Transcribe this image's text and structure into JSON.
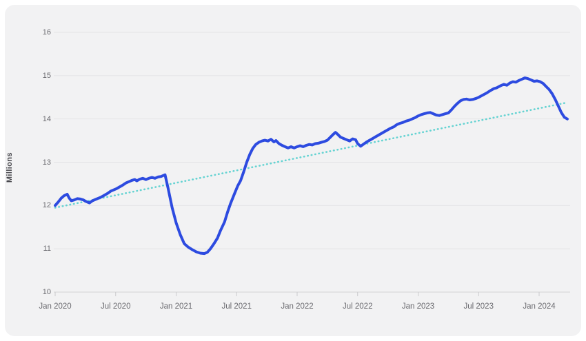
{
  "page": {
    "background": "#ffffff",
    "card_background": "#f2f2f3",
    "gridline_color": "#e4e4e6",
    "baseline_color": "#d8d8da",
    "tickmark_color": "#cbcbcd",
    "axis_text_color": "#6b6b70"
  },
  "chart_data": {
    "type": "line",
    "title": "",
    "xlabel": "",
    "ylabel": "Millions",
    "grid": "horizontal",
    "legend": "none",
    "ylim": [
      10,
      16
    ],
    "xlim_months_from_jan2020": [
      -0.15,
      51.1
    ],
    "y_ticks": [
      {
        "label": "10",
        "v": 10
      },
      {
        "label": "11",
        "v": 11
      },
      {
        "label": "12",
        "v": 12
      },
      {
        "label": "13",
        "v": 13
      },
      {
        "label": "14",
        "v": 14
      },
      {
        "label": "15",
        "v": 15
      },
      {
        "label": "16",
        "v": 16
      }
    ],
    "x_ticks": [
      {
        "label": "Jan 2020",
        "m": 0
      },
      {
        "label": "Jul 2020",
        "m": 6
      },
      {
        "label": "Jan 2021",
        "m": 12
      },
      {
        "label": "Jul 2021",
        "m": 18
      },
      {
        "label": "Jan 2022",
        "m": 24
      },
      {
        "label": "Jul 2022",
        "m": 30
      },
      {
        "label": "Jan 2023",
        "m": 36
      },
      {
        "label": "Jul 2023",
        "m": 42
      },
      {
        "label": "Jan 2024",
        "m": 48
      }
    ],
    "series": [
      {
        "name": "observed",
        "color": "#2d4be0",
        "style": "solid",
        "points": [
          [
            0,
            12.0
          ],
          [
            0.3,
            12.08
          ],
          [
            0.6,
            12.17
          ],
          [
            0.9,
            12.23
          ],
          [
            1.2,
            12.26
          ],
          [
            1.4,
            12.17
          ],
          [
            1.6,
            12.11
          ],
          [
            1.9,
            12.13
          ],
          [
            2.2,
            12.16
          ],
          [
            2.5,
            12.15
          ],
          [
            2.8,
            12.13
          ],
          [
            3.1,
            12.09
          ],
          [
            3.4,
            12.06
          ],
          [
            3.7,
            12.11
          ],
          [
            4.0,
            12.14
          ],
          [
            4.3,
            12.17
          ],
          [
            4.6,
            12.2
          ],
          [
            4.9,
            12.24
          ],
          [
            5.2,
            12.28
          ],
          [
            5.5,
            12.33
          ],
          [
            5.8,
            12.36
          ],
          [
            6.1,
            12.39
          ],
          [
            6.4,
            12.43
          ],
          [
            6.7,
            12.47
          ],
          [
            7.0,
            12.52
          ],
          [
            7.3,
            12.55
          ],
          [
            7.6,
            12.58
          ],
          [
            7.9,
            12.6
          ],
          [
            8.1,
            12.57
          ],
          [
            8.4,
            12.61
          ],
          [
            8.7,
            12.63
          ],
          [
            9.0,
            12.6
          ],
          [
            9.3,
            12.63
          ],
          [
            9.6,
            12.65
          ],
          [
            9.9,
            12.63
          ],
          [
            10.2,
            12.66
          ],
          [
            10.5,
            12.67
          ],
          [
            10.9,
            12.71
          ],
          [
            11.2,
            12.4
          ],
          [
            11.6,
            11.95
          ],
          [
            12.0,
            11.6
          ],
          [
            12.4,
            11.33
          ],
          [
            12.8,
            11.12
          ],
          [
            13.2,
            11.04
          ],
          [
            13.6,
            10.98
          ],
          [
            14.0,
            10.93
          ],
          [
            14.4,
            10.9
          ],
          [
            14.8,
            10.89
          ],
          [
            15.1,
            10.92
          ],
          [
            15.4,
            11.0
          ],
          [
            15.7,
            11.1
          ],
          [
            16.1,
            11.25
          ],
          [
            16.4,
            11.42
          ],
          [
            16.8,
            11.62
          ],
          [
            17.1,
            11.85
          ],
          [
            17.4,
            12.05
          ],
          [
            17.8,
            12.28
          ],
          [
            18.1,
            12.45
          ],
          [
            18.4,
            12.58
          ],
          [
            18.7,
            12.78
          ],
          [
            19.0,
            13.0
          ],
          [
            19.3,
            13.18
          ],
          [
            19.6,
            13.32
          ],
          [
            19.9,
            13.41
          ],
          [
            20.2,
            13.46
          ],
          [
            20.5,
            13.49
          ],
          [
            20.8,
            13.51
          ],
          [
            21.1,
            13.49
          ],
          [
            21.4,
            13.53
          ],
          [
            21.7,
            13.47
          ],
          [
            21.9,
            13.5
          ],
          [
            22.2,
            13.43
          ],
          [
            22.5,
            13.39
          ],
          [
            22.8,
            13.36
          ],
          [
            23.1,
            13.33
          ],
          [
            23.4,
            13.36
          ],
          [
            23.7,
            13.33
          ],
          [
            24.0,
            13.36
          ],
          [
            24.3,
            13.38
          ],
          [
            24.6,
            13.36
          ],
          [
            24.9,
            13.39
          ],
          [
            25.2,
            13.41
          ],
          [
            25.5,
            13.4
          ],
          [
            25.8,
            13.43
          ],
          [
            26.1,
            13.44
          ],
          [
            26.4,
            13.46
          ],
          [
            26.7,
            13.48
          ],
          [
            27.0,
            13.51
          ],
          [
            27.3,
            13.58
          ],
          [
            27.6,
            13.65
          ],
          [
            27.8,
            13.69
          ],
          [
            28.0,
            13.65
          ],
          [
            28.3,
            13.58
          ],
          [
            28.6,
            13.55
          ],
          [
            28.9,
            13.52
          ],
          [
            29.2,
            13.49
          ],
          [
            29.5,
            13.54
          ],
          [
            29.8,
            13.52
          ],
          [
            30.0,
            13.43
          ],
          [
            30.3,
            13.37
          ],
          [
            30.6,
            13.42
          ],
          [
            30.9,
            13.47
          ],
          [
            31.2,
            13.51
          ],
          [
            31.5,
            13.55
          ],
          [
            31.8,
            13.59
          ],
          [
            32.1,
            13.63
          ],
          [
            32.4,
            13.67
          ],
          [
            32.7,
            13.71
          ],
          [
            33.0,
            13.75
          ],
          [
            33.3,
            13.79
          ],
          [
            33.6,
            13.82
          ],
          [
            33.9,
            13.87
          ],
          [
            34.2,
            13.9
          ],
          [
            34.5,
            13.92
          ],
          [
            34.8,
            13.95
          ],
          [
            35.1,
            13.97
          ],
          [
            35.4,
            14.0
          ],
          [
            35.7,
            14.03
          ],
          [
            36.0,
            14.07
          ],
          [
            36.3,
            14.1
          ],
          [
            36.6,
            14.12
          ],
          [
            36.9,
            14.14
          ],
          [
            37.2,
            14.15
          ],
          [
            37.5,
            14.12
          ],
          [
            37.8,
            14.09
          ],
          [
            38.1,
            14.08
          ],
          [
            38.4,
            14.1
          ],
          [
            38.7,
            14.12
          ],
          [
            39.0,
            14.14
          ],
          [
            39.3,
            14.21
          ],
          [
            39.6,
            14.29
          ],
          [
            39.9,
            14.36
          ],
          [
            40.2,
            14.42
          ],
          [
            40.5,
            14.45
          ],
          [
            40.8,
            14.46
          ],
          [
            41.1,
            14.44
          ],
          [
            41.4,
            14.45
          ],
          [
            41.7,
            14.47
          ],
          [
            42.0,
            14.5
          ],
          [
            42.4,
            14.55
          ],
          [
            42.8,
            14.6
          ],
          [
            43.2,
            14.66
          ],
          [
            43.5,
            14.7
          ],
          [
            43.8,
            14.72
          ],
          [
            44.2,
            14.77
          ],
          [
            44.5,
            14.8
          ],
          [
            44.8,
            14.78
          ],
          [
            45.1,
            14.83
          ],
          [
            45.4,
            14.86
          ],
          [
            45.7,
            14.85
          ],
          [
            46.0,
            14.89
          ],
          [
            46.3,
            14.92
          ],
          [
            46.6,
            14.95
          ],
          [
            46.9,
            14.93
          ],
          [
            47.2,
            14.9
          ],
          [
            47.5,
            14.87
          ],
          [
            47.8,
            14.88
          ],
          [
            48.1,
            14.86
          ],
          [
            48.4,
            14.82
          ],
          [
            48.7,
            14.75
          ],
          [
            49.0,
            14.68
          ],
          [
            49.3,
            14.58
          ],
          [
            49.6,
            14.45
          ],
          [
            49.9,
            14.3
          ],
          [
            50.2,
            14.15
          ],
          [
            50.5,
            14.04
          ],
          [
            50.8,
            14.0
          ]
        ]
      },
      {
        "name": "trend",
        "color": "#65d3d2",
        "style": "dotted",
        "points": [
          [
            0,
            11.95
          ],
          [
            50.8,
            14.38
          ]
        ]
      }
    ]
  }
}
